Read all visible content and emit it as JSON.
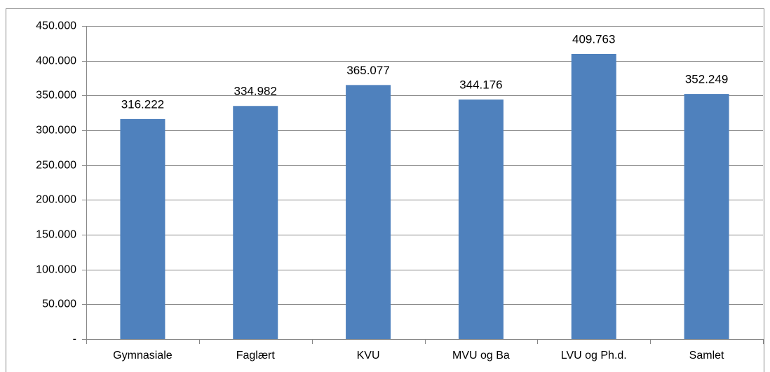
{
  "chart_data": {
    "type": "bar",
    "categories": [
      "Gymnasiale",
      "Faglært",
      "KVU",
      "MVU og Ba",
      "LVU og Ph.d.",
      "Samlet"
    ],
    "values": [
      316222,
      334982,
      365077,
      344176,
      409763,
      352249
    ],
    "value_labels": [
      "316.222",
      "334.982",
      "365.077",
      "344.176",
      "409.763",
      "352.249"
    ],
    "color": "#4f81bd",
    "ylim": [
      0,
      450000
    ],
    "yticks": [
      {
        "value": 0,
        "label": "-"
      },
      {
        "value": 50000,
        "label": "50.000"
      },
      {
        "value": 100000,
        "label": "100.000"
      },
      {
        "value": 150000,
        "label": "150.000"
      },
      {
        "value": 200000,
        "label": "200.000"
      },
      {
        "value": 250000,
        "label": "250.000"
      },
      {
        "value": 300000,
        "label": "300.000"
      },
      {
        "value": 350000,
        "label": "350.000"
      },
      {
        "value": 400000,
        "label": "400.000"
      },
      {
        "value": 450000,
        "label": "450.000"
      }
    ],
    "grid": true
  }
}
